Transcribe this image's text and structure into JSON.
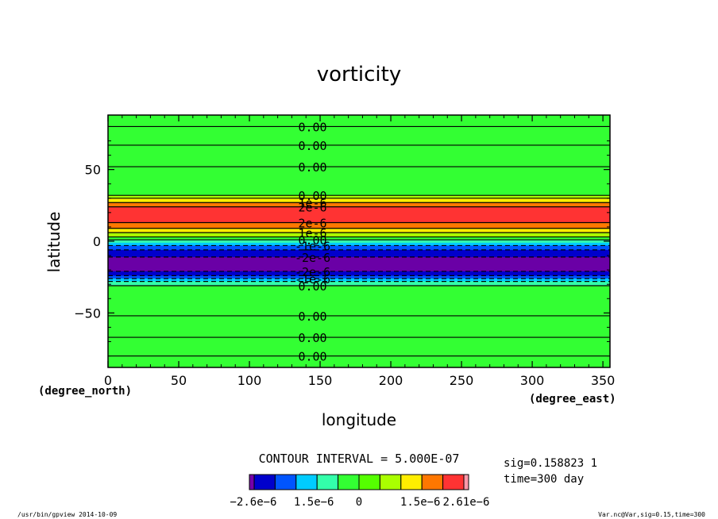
{
  "chart_data": {
    "type": "heatmap",
    "title": "vorticity",
    "xlabel": "longitude",
    "ylabel": "latitude",
    "x_unit": "(degree_east)",
    "y_unit": "(degree_north)",
    "xlim": [
      0,
      355
    ],
    "ylim": [
      -88,
      88
    ],
    "x_ticks": [
      0,
      50,
      100,
      150,
      200,
      250,
      300,
      350
    ],
    "x_tick_labels": [
      "0",
      "50",
      "100",
      "150",
      "200",
      "250",
      "300",
      "350"
    ],
    "y_ticks": [
      50,
      0,
      -50
    ],
    "y_tick_labels": [
      "50",
      "0",
      "−50"
    ],
    "bands": [
      {
        "lat": [
          32,
          88
        ],
        "color": "#33ff33"
      },
      {
        "lat": [
          30,
          32
        ],
        "color": "#aaff00"
      },
      {
        "lat": [
          27,
          30
        ],
        "color": "#ffee00"
      },
      {
        "lat": [
          24,
          27
        ],
        "color": "#ff7700"
      },
      {
        "lat": [
          13,
          24
        ],
        "color": "#ff3333"
      },
      {
        "lat": [
          9,
          13
        ],
        "color": "#ff7700"
      },
      {
        "lat": [
          6,
          9
        ],
        "color": "#ffee00"
      },
      {
        "lat": [
          3,
          6
        ],
        "color": "#aaff00"
      },
      {
        "lat": [
          1,
          3
        ],
        "color": "#33ff33"
      },
      {
        "lat": [
          -1,
          1
        ],
        "color": "#33ffaa"
      },
      {
        "lat": [
          -3,
          -1
        ],
        "color": "#00ccff"
      },
      {
        "lat": [
          -6,
          -3
        ],
        "color": "#0055ff"
      },
      {
        "lat": [
          -11,
          -6
        ],
        "color": "#0000cc"
      },
      {
        "lat": [
          -21,
          -11
        ],
        "color": "#6a00a6"
      },
      {
        "lat": [
          -24,
          -21
        ],
        "color": "#0000cc"
      },
      {
        "lat": [
          -26,
          -24
        ],
        "color": "#0055ff"
      },
      {
        "lat": [
          -28,
          -26
        ],
        "color": "#00ccff"
      },
      {
        "lat": [
          -31,
          -28
        ],
        "color": "#33ffaa"
      },
      {
        "lat": [
          -88,
          -31
        ],
        "color": "#33ff33"
      }
    ],
    "contours": [
      {
        "lat": 80,
        "label": "0.00"
      },
      {
        "lat": 67,
        "label": "0.00"
      },
      {
        "lat": 52,
        "label": "0.00"
      },
      {
        "lat": 32,
        "label": "0.00"
      },
      {
        "lat": 30
      },
      {
        "lat": 27,
        "label": "1e-6"
      },
      {
        "lat": 24,
        "label": "2e-6"
      },
      {
        "lat": 13,
        "label": "2e-6"
      },
      {
        "lat": 9
      },
      {
        "lat": 6,
        "label": "1e-6"
      },
      {
        "lat": 3
      },
      {
        "lat": 1,
        "label": "0.00"
      },
      {
        "lat": -3,
        "dashed": true,
        "label": "-1e-6"
      },
      {
        "lat": -6,
        "dashed": true
      },
      {
        "lat": -11,
        "dashed": true,
        "label": "-2e-6"
      },
      {
        "lat": -21,
        "dashed": true,
        "label": "-2e-6"
      },
      {
        "lat": -24,
        "dashed": true
      },
      {
        "lat": -26,
        "dashed": true,
        "label": "-1e-6"
      },
      {
        "lat": -28,
        "dashed": true
      },
      {
        "lat": -31,
        "label": "0.00"
      },
      {
        "lat": -52,
        "label": "0.00"
      },
      {
        "lat": -67,
        "label": "0.00"
      },
      {
        "lat": -80,
        "label": "0.00"
      }
    ],
    "label_lon": 125
  },
  "legend": {
    "contour_interval": "CONTOUR INTERVAL = 5.000E-07",
    "colors": [
      "#7700aa",
      "#0000cc",
      "#0055ff",
      "#00ccff",
      "#33ffaa",
      "#33ff33",
      "#55ff00",
      "#aaff00",
      "#ffee00",
      "#ff7700",
      "#ff3333",
      "#ff99aa"
    ],
    "tick_labels": [
      "−2.6e−6",
      "1.5e−6",
      "0",
      "1.5e−6",
      "2.61e−6"
    ]
  },
  "info": {
    "sig": "sig=0.158823 1",
    "time": "time=300 day"
  },
  "footer": {
    "left": "/usr/bin/gpview   2014-10-09",
    "right": "Var.nc@Var,sig=0.15,time=300"
  }
}
